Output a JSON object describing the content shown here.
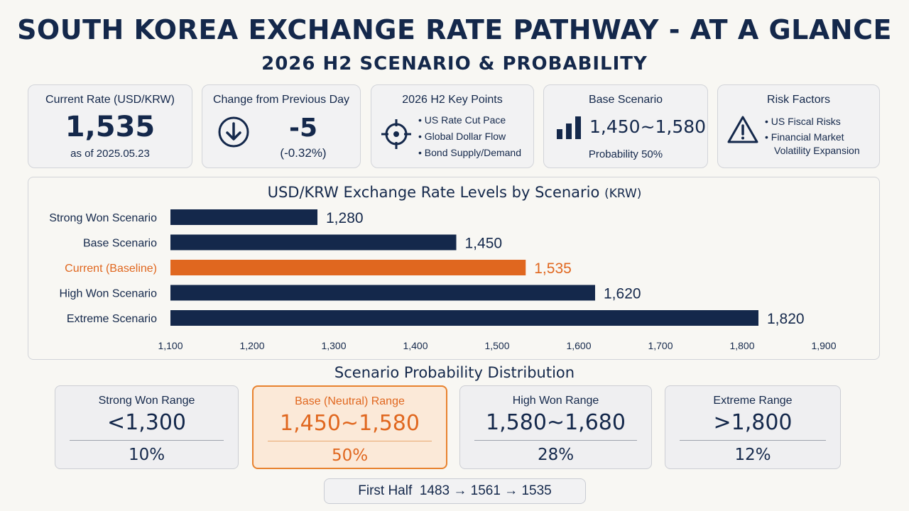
{
  "title": "SOUTH KOREA EXCHANGE RATE PATHWAY - AT A GLANCE",
  "subtitle": "2026 H2 SCENARIO & PROBABILITY",
  "cards": {
    "current": {
      "label": "Current Rate (USD/KRW)",
      "value": "1,535",
      "date": "as of 2025.05.23"
    },
    "change": {
      "label": "Change from Previous Day",
      "value": "-5",
      "pct": "(-0.32%)",
      "icon": "arrow-down-circle-icon"
    },
    "key_points": {
      "label": "2026 H2 Key Points",
      "items": [
        "US Rate Cut Pace",
        "Global Dollar Flow",
        "Bond Supply/Demand"
      ],
      "icon": "target-crosshair-icon"
    },
    "base": {
      "label": "Base Scenario",
      "range": "1,450~1,580",
      "prob": "Probability 50%",
      "icon": "bar-chart-icon"
    },
    "risk": {
      "label": "Risk Factors",
      "items": [
        "US Fiscal Risks",
        "Financial Market"
      ],
      "item_cont": "Volatility Expansion",
      "icon": "warning-triangle-icon"
    }
  },
  "chart_data": {
    "type": "bar",
    "orientation": "horizontal",
    "title": "USD/KRW Exchange Rate Levels by Scenario",
    "title_unit": "(KRW)",
    "categories": [
      "Strong Won Scenario",
      "Base Scenario",
      "Current (Baseline)",
      "High Won Scenario",
      "Extreme Scenario"
    ],
    "values": [
      1280,
      1450,
      1535,
      1620,
      1820
    ],
    "value_labels": [
      "1,280",
      "1,450",
      "1,535",
      "1,620",
      "1,820"
    ],
    "highlight": "Current (Baseline)",
    "xlim": [
      1100,
      1900
    ],
    "xticks": [
      1100,
      1200,
      1300,
      1400,
      1500,
      1600,
      1700,
      1800,
      1900
    ],
    "xtick_labels": [
      "1,100",
      "1,200",
      "1,300",
      "1,400",
      "1,500",
      "1,600",
      "1,700",
      "1,800",
      "1,900"
    ],
    "colors": {
      "bar": "#14284b",
      "highlight": "#e0671f"
    }
  },
  "distribution": {
    "title": "Scenario Probability Distribution",
    "items": [
      {
        "label": "Strong Won Range",
        "range": "<1,300",
        "prob": "10%"
      },
      {
        "label": "Base (Neutral) Range",
        "range": "1,450~1,580",
        "prob": "50%",
        "highlight": true
      },
      {
        "label": "High Won Range",
        "range": "1,580~1,680",
        "prob": "28%"
      },
      {
        "label": "Extreme Range",
        "range": ">1,800",
        "prob": "12%"
      }
    ]
  },
  "pathway": {
    "label": "First Half",
    "values": "1483 → 1561 → 1535"
  },
  "colors": {
    "navy": "#14284b",
    "orange": "#e0671f",
    "highlight_bg": "#fbe9d8"
  }
}
